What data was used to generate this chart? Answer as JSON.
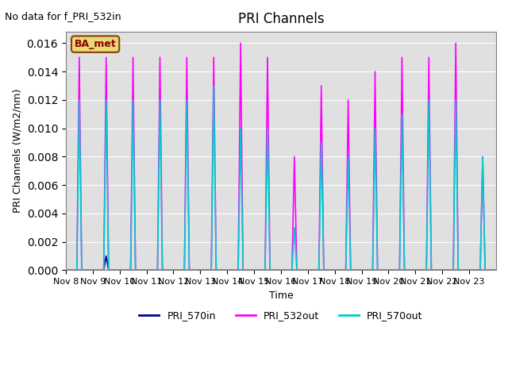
{
  "title": "PRI Channels",
  "no_data_text": "No data for f_PRI_532in",
  "ylabel": "PRI Channels (W/m2/nm)",
  "xlabel": "Time",
  "ylim": [
    0,
    0.0168
  ],
  "yticks": [
    0.0,
    0.002,
    0.004,
    0.006,
    0.008,
    0.01,
    0.012,
    0.014,
    0.016
  ],
  "bg_color": "#e0e0e0",
  "legend_label": "BA_met",
  "legend_fg": "#8B0000",
  "legend_bg": "#e8d878",
  "legend_border": "#8B4000",
  "col_570in": "#00008B",
  "col_532out": "#FF00FF",
  "col_570out": "#00CCCC",
  "lw": 1.2,
  "xticklabels": [
    "Nov 8",
    "Nov 9",
    "Nov 10",
    "Nov 11",
    "Nov 12",
    "Nov 13",
    "Nov 14",
    "Nov 15",
    "Nov 16",
    "Nov 17",
    "Nov 18",
    "Nov 19",
    "Nov 20",
    "Nov 21",
    "Nov 22",
    "Nov 23"
  ],
  "spikes_532out": [
    0.015,
    0.015,
    0.015,
    0.015,
    0.015,
    0.015,
    0.016,
    0.015,
    0.008,
    0.013,
    0.012,
    0.014,
    0.015,
    0.015,
    0.016,
    0.008
  ],
  "spikes_570out": [
    0.012,
    0.012,
    0.012,
    0.012,
    0.012,
    0.013,
    0.01,
    0.01,
    0.003,
    0.009,
    0.008,
    0.01,
    0.011,
    0.012,
    0.012,
    0.008
  ],
  "spikes_570in": [
    0.0,
    0.001,
    0.0,
    0.0,
    0.0,
    0.0,
    0.0,
    0.0,
    0.0,
    0.0,
    0.0,
    0.0,
    0.0,
    0.0,
    0.0,
    0.0
  ]
}
